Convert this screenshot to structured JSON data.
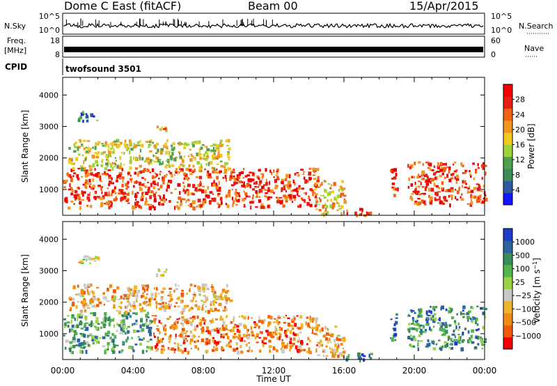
{
  "header": {
    "station": "Dome C East (fitACF)",
    "beam": "Beam 00",
    "date": "15/Apr/2015"
  },
  "params": {
    "nsky_label": "N.Sky",
    "nsky_ticks": [
      "10^5",
      "10^0"
    ],
    "nsearch_label": "N.Search",
    "nsearch_ticks": [
      "10^5",
      "10^0"
    ],
    "freq_label": "Freq.",
    "freq_unit": "[MHz]",
    "freq_ticks": [
      "18",
      "8"
    ],
    "nave_label": "Nave",
    "nave_ticks": [
      "60",
      "0"
    ],
    "cpid_label": "CPID",
    "cpid_value": "twofsound 3501"
  },
  "colors": {
    "power": [
      "#1414ff",
      "#2d5aa0",
      "#3c8c5a",
      "#50a050",
      "#a0d23c",
      "#f0c81e",
      "#f0961e",
      "#f06414",
      "#e61e14",
      "#f00000"
    ],
    "velocity": [
      "#f00000",
      "#f05a0a",
      "#f08c14",
      "#f0b428",
      "#c8c8c8",
      "#9bd246",
      "#50b450",
      "#3c8c5a",
      "#2d64a0",
      "#1e3cc8"
    ]
  },
  "chart_data": [
    {
      "type": "heatmap",
      "name": "power",
      "xlabel": "Time UT",
      "ylabel": "Slant Range [km]",
      "x_ticks": [
        "00:00",
        "04:00",
        "08:00",
        "12:00",
        "16:00",
        "20:00",
        "00:00"
      ],
      "xlim_hours": [
        0,
        24
      ],
      "y_ticks": [
        1000,
        2000,
        3000,
        4000
      ],
      "ylim": [
        180,
        4560
      ],
      "colorbar": {
        "label": "Power [dB]",
        "ticks": [
          4,
          8,
          12,
          16,
          20,
          24,
          28
        ],
        "range": [
          0,
          32
        ]
      },
      "echo_regions": [
        {
          "t": [
            0.0,
            14.5
          ],
          "r": [
            450,
            1700
          ],
          "level": 0.85
        },
        {
          "t": [
            14.3,
            16.0
          ],
          "r": [
            250,
            1300
          ],
          "level": 0.6
        },
        {
          "t": [
            16.0,
            17.5
          ],
          "r": [
            200,
            420
          ],
          "level": 0.9
        },
        {
          "t": [
            18.6,
            19.0
          ],
          "r": [
            800,
            1700
          ],
          "level": 0.9
        },
        {
          "t": [
            19.6,
            24.0
          ],
          "r": [
            550,
            1900
          ],
          "level": 0.85
        },
        {
          "t": [
            0.3,
            9.5
          ],
          "r": [
            1700,
            2600
          ],
          "level": 0.5
        },
        {
          "t": [
            5.3,
            6.0
          ],
          "r": [
            2850,
            3100
          ],
          "level": 0.7
        },
        {
          "t": [
            0.8,
            2.0
          ],
          "r": [
            3200,
            3500
          ],
          "level": 0.2
        }
      ]
    },
    {
      "type": "heatmap",
      "name": "velocity",
      "xlabel": "Time UT",
      "ylabel": "Slant Range [km]",
      "x_ticks": [
        "00:00",
        "04:00",
        "08:00",
        "12:00",
        "16:00",
        "20:00",
        "00:00"
      ],
      "xlim_hours": [
        0,
        24
      ],
      "y_ticks": [
        1000,
        2000,
        3000,
        4000
      ],
      "ylim": [
        180,
        4560
      ],
      "colorbar": {
        "label": "Velocity [m s-1]",
        "ticks": [
          -1000,
          -500,
          -100,
          -25,
          25,
          100,
          500,
          1000
        ],
        "tick_labels": [
          "−1000",
          "−500",
          "−100",
          "−25",
          "25",
          "100",
          "500",
          "1000"
        ]
      },
      "echo_regions": [
        {
          "t": [
            0.0,
            5.0
          ],
          "r": [
            450,
            1700
          ],
          "level": 0.7
        },
        {
          "t": [
            5.0,
            14.5
          ],
          "r": [
            450,
            1600
          ],
          "level": 0.2
        },
        {
          "t": [
            14.3,
            16.0
          ],
          "r": [
            250,
            1300
          ],
          "level": 0.3
        },
        {
          "t": [
            16.0,
            17.5
          ],
          "r": [
            200,
            420
          ],
          "level": 0.8
        },
        {
          "t": [
            18.6,
            19.0
          ],
          "r": [
            800,
            1700
          ],
          "level": 0.85
        },
        {
          "t": [
            19.6,
            24.0
          ],
          "r": [
            550,
            1900
          ],
          "level": 0.75
        },
        {
          "t": [
            0.3,
            9.5
          ],
          "r": [
            1700,
            2600
          ],
          "level": 0.3
        },
        {
          "t": [
            5.3,
            6.0
          ],
          "r": [
            2850,
            3100
          ],
          "level": 0.5
        },
        {
          "t": [
            0.8,
            2.0
          ],
          "r": [
            3200,
            3500
          ],
          "level": 0.45
        }
      ]
    }
  ]
}
